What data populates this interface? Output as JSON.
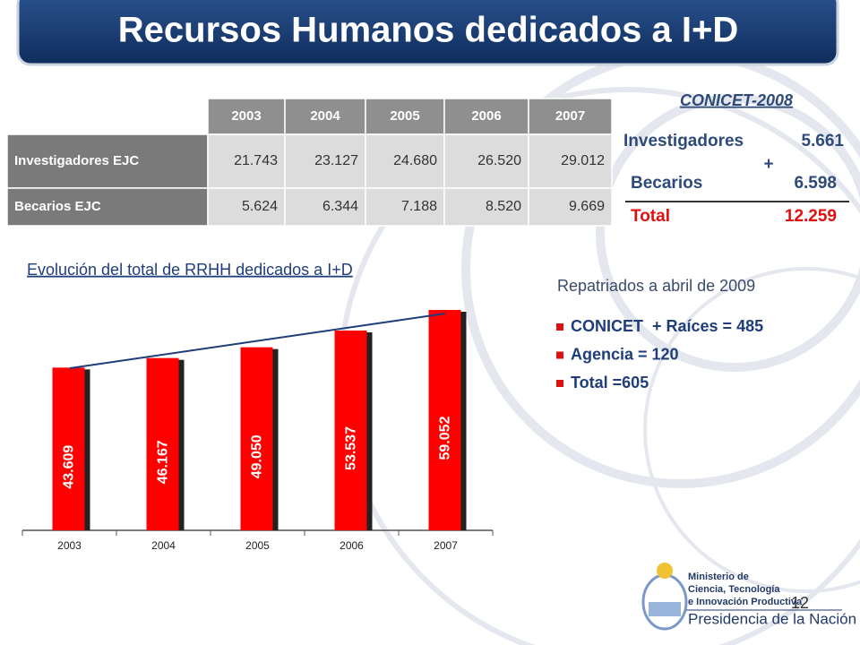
{
  "header": {
    "title": "Recursos Humanos dedicados a I+D"
  },
  "table": {
    "columns": [
      "2003",
      "2004",
      "2005",
      "2006",
      "2007"
    ],
    "rows": [
      {
        "label": "Investigadores EJC",
        "cells": [
          "21.743",
          "23.127",
          "24.680",
          "26.520",
          "29.012"
        ]
      },
      {
        "label": "Becarios EJC",
        "cells": [
          "5.624",
          "6.344",
          "7.188",
          "8.520",
          "9.669"
        ]
      }
    ]
  },
  "conicet": {
    "title": "CONICET-2008",
    "rows": [
      {
        "label": "Investigadores",
        "value": "5.661"
      },
      {
        "label": "+"
      },
      {
        "label": "Becarios",
        "value": "6.598"
      },
      {
        "label": "Total",
        "value": "12.259"
      }
    ]
  },
  "chart_data": {
    "type": "bar",
    "title": "Evolución del total de RRHH dedicados a I+D",
    "categories": [
      "2003",
      "2004",
      "2005",
      "2006",
      "2007"
    ],
    "values": [
      43609,
      46167,
      49050,
      53537,
      59052
    ],
    "value_labels": [
      "43.609",
      "46.167",
      "49.050",
      "53.537",
      "59.052"
    ],
    "color": "#ff0000"
  },
  "repatriados": {
    "title": "Repatriados a abril de 2009",
    "items": [
      "CONICET  + Raíces = 485",
      "Agencia = 120",
      "Total =605"
    ]
  },
  "footer": {
    "ministry": [
      "Ministerio de",
      "Ciencia, Tecnología",
      "e Innovación Productiva"
    ],
    "presidency": "Presidencia de la Nación",
    "page": "12"
  }
}
